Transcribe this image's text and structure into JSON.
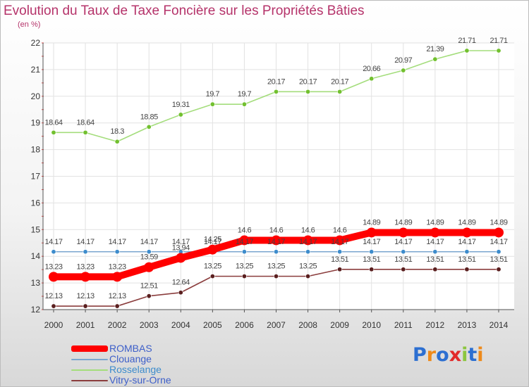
{
  "title": "Evolution du Taux de Taxe Foncière sur les Propriétés Bâties",
  "unit_label": "(en %)",
  "logo": {
    "text": "Proxiti",
    "letter_colors": [
      "#2c6fd1",
      "#ee8a1b",
      "#2c6fd1",
      "#e22a2a",
      "#8cc63f",
      "#2c6fd1",
      "#ee8a1b"
    ]
  },
  "chart_data": {
    "type": "line",
    "x": [
      "2000",
      "2001",
      "2002",
      "2003",
      "2004",
      "2005",
      "2006",
      "2007",
      "2008",
      "2009",
      "2010",
      "2011",
      "2012",
      "2013",
      "2014"
    ],
    "ylim": [
      12,
      22
    ],
    "yticks": [
      "12",
      "13",
      "14",
      "15",
      "16",
      "17",
      "18",
      "19",
      "20",
      "21",
      "22"
    ],
    "grid": true,
    "legend_placement": "bottom-left",
    "series": [
      {
        "name": "ROMBAS",
        "color": "#ff0000",
        "marker_color": "#ff0000",
        "emphasis": "thick",
        "values": [
          13.23,
          13.23,
          13.23,
          13.59,
          13.94,
          14.25,
          14.6,
          14.6,
          14.6,
          14.6,
          14.89,
          14.89,
          14.89,
          14.89,
          14.89
        ],
        "labels": [
          "13.23",
          "13.23",
          "13.23",
          "13.59",
          "13.94",
          "14.25",
          "14.6",
          "14.6",
          "14.6",
          "14.6",
          "14.89",
          "14.89",
          "14.89",
          "14.89",
          "14.89"
        ]
      },
      {
        "name": "Clouange",
        "color": "#7aa6cf",
        "marker_color": "#3d8ccc",
        "emphasis": "normal",
        "values": [
          14.17,
          14.17,
          14.17,
          14.17,
          14.17,
          14.17,
          14.17,
          14.17,
          14.17,
          14.17,
          14.17,
          14.17,
          14.17,
          14.17,
          14.17
        ],
        "labels": [
          "14.17",
          "14.17",
          "14.17",
          "14.17",
          "14.17",
          "14.17",
          "14.17",
          "14.17",
          "14.17",
          "14.17",
          "14.17",
          "14.17",
          "14.17",
          "14.17",
          "14.17"
        ]
      },
      {
        "name": "Rosselange",
        "color": "#a4dd7c",
        "marker_color": "#72c02f",
        "emphasis": "normal",
        "values": [
          18.64,
          18.64,
          18.3,
          18.85,
          19.31,
          19.7,
          19.7,
          20.17,
          20.17,
          20.17,
          20.66,
          20.97,
          21.39,
          21.71,
          21.71
        ],
        "labels": [
          "18.64",
          "18.64",
          "18.3",
          "18.85",
          "19.31",
          "19.7",
          "19.7",
          "20.17",
          "20.17",
          "20.17",
          "20.66",
          "20.97",
          "21.39",
          "21.71",
          "21.71"
        ]
      },
      {
        "name": "Vitry-sur-Orne",
        "color": "#8b3d3d",
        "marker_color": "#5a1f1f",
        "emphasis": "normal",
        "values": [
          12.13,
          12.13,
          12.13,
          12.51,
          12.64,
          13.25,
          13.25,
          13.25,
          13.25,
          13.51,
          13.51,
          13.51,
          13.51,
          13.51,
          13.51
        ],
        "labels": [
          "12.13",
          "12.13",
          "12.13",
          "12.51",
          "12.64",
          "13.25",
          "13.25",
          "13.25",
          "13.25",
          "13.51",
          "13.51",
          "13.51",
          "13.51",
          "13.51",
          "13.51"
        ]
      }
    ]
  }
}
